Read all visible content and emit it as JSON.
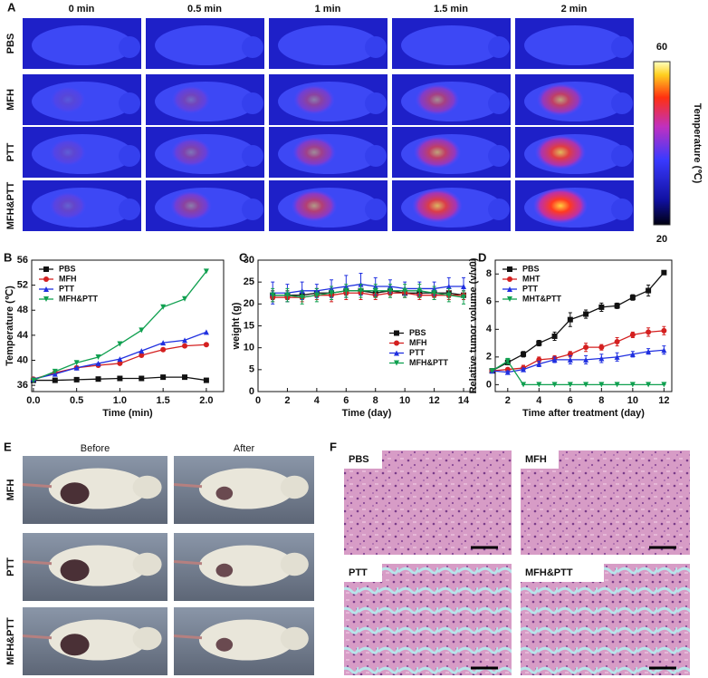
{
  "panel_labels": [
    "A",
    "B",
    "C",
    "D",
    "E",
    "F"
  ],
  "panel_a": {
    "columns": [
      "0 min",
      "0.5 min",
      "1 min",
      "1.5 min",
      "2 min"
    ],
    "rows": [
      "PBS",
      "MFH",
      "PTT",
      "MFH&PTT"
    ],
    "colorbar": {
      "max": 60,
      "min": 20,
      "label": "Temperature (℃)"
    }
  },
  "chart_data": [
    {
      "type": "line",
      "xlabel": "Time (min)",
      "ylabel": "Temperature (℃)",
      "legend": "upper left",
      "x": [
        0,
        0.25,
        0.5,
        0.75,
        1.0,
        1.25,
        1.5,
        1.75,
        2.0
      ],
      "xlim": [
        -0.02,
        2.2
      ],
      "xticks": [
        {
          "value": 0,
          "label": "0.0"
        },
        0.5,
        {
          "value": 1,
          "label": "1.0"
        },
        1.5,
        {
          "value": 2,
          "label": "2.0"
        }
      ],
      "ylim": [
        35,
        56
      ],
      "yticks": [
        36,
        40,
        44,
        48,
        52,
        56
      ],
      "series": [
        {
          "name": "PBS",
          "color": "#111111",
          "marker": "square",
          "values": [
            36.8,
            36.8,
            36.9,
            37,
            37.1,
            37.1,
            37.3,
            37.3,
            36.8
          ]
        },
        {
          "name": "MFH",
          "color": "#d42020",
          "marker": "circle",
          "values": [
            37,
            38,
            38.8,
            39.2,
            39.5,
            40.8,
            41.7,
            42.3,
            42.5
          ]
        },
        {
          "name": "PTT",
          "color": "#2030e0",
          "marker": "triangle",
          "values": [
            37,
            37.8,
            38.8,
            39.5,
            40.2,
            41.5,
            42.8,
            43.2,
            44.5
          ]
        },
        {
          "name": "MFH&PTT",
          "color": "#10a050",
          "marker": "triangle-down",
          "values": [
            36.8,
            38.2,
            39.6,
            40.5,
            42.6,
            44.8,
            48.5,
            49.8,
            54.2
          ]
        }
      ]
    },
    {
      "type": "line",
      "xlabel": "Time (day)",
      "ylabel": "weight (g)",
      "legend": "center right",
      "x": [
        1,
        2,
        3,
        4,
        5,
        6,
        7,
        8,
        9,
        10,
        11,
        12,
        13,
        14
      ],
      "xlim": [
        0,
        14.8
      ],
      "xticks": [
        0,
        2,
        4,
        6,
        8,
        10,
        12,
        14
      ],
      "ylim": [
        0,
        30
      ],
      "yticks": [
        0,
        5,
        10,
        15,
        20,
        25,
        30
      ],
      "series": [
        {
          "name": "PBS",
          "color": "#111111",
          "marker": "square",
          "values": [
            22,
            22,
            22,
            22.5,
            22.5,
            23,
            23,
            22.5,
            23,
            22.5,
            22.5,
            22.5,
            22.5,
            22
          ],
          "errors": [
            1,
            1,
            1,
            1,
            1,
            1,
            1,
            1,
            1,
            1,
            1,
            1,
            1,
            1
          ]
        },
        {
          "name": "MFH",
          "color": "#d42020",
          "marker": "circle",
          "values": [
            21.5,
            21.5,
            21.5,
            22,
            22,
            22.5,
            22.5,
            22,
            22.5,
            22.5,
            22,
            22,
            22,
            22
          ],
          "errors": [
            1,
            1,
            1,
            1,
            1.5,
            1.5,
            1.5,
            1,
            1,
            1,
            1,
            1,
            1,
            1
          ]
        },
        {
          "name": "PTT",
          "color": "#2030e0",
          "marker": "triangle",
          "values": [
            22.5,
            22.5,
            23,
            23,
            23.5,
            24,
            24.5,
            24,
            24,
            23.5,
            23.5,
            23.5,
            24,
            24
          ],
          "errors": [
            2.5,
            2,
            2,
            1.5,
            2,
            2.5,
            2.5,
            2,
            1.5,
            1.5,
            1.5,
            1.5,
            2,
            2
          ]
        },
        {
          "name": "MFH&PTT",
          "color": "#10a050",
          "marker": "triangle-down",
          "values": [
            22,
            22,
            21.5,
            22,
            22.5,
            23,
            23,
            23,
            23,
            23,
            23,
            22.5,
            22,
            21.5
          ],
          "errors": [
            1.5,
            1.5,
            1.5,
            1.5,
            1.5,
            1.5,
            1.5,
            1.5,
            1.5,
            1.5,
            1.5,
            1.5,
            1.5,
            1.5
          ]
        }
      ]
    },
    {
      "type": "line",
      "xlabel": "Time after treatment (day)",
      "ylabel": "Relative tumor volume (v/v0)",
      "legend": "upper left",
      "x": [
        1,
        2,
        3,
        4,
        5,
        6,
        7,
        8,
        9,
        10,
        11,
        12
      ],
      "xlim": [
        1.2,
        12.5
      ],
      "xticks": [
        2,
        4,
        6,
        8,
        10,
        12
      ],
      "ylim": [
        -0.5,
        9
      ],
      "yticks": [
        0,
        2,
        4,
        6,
        8
      ],
      "series": [
        {
          "name": "PBS",
          "color": "#111111",
          "marker": "square",
          "values": [
            1,
            1.6,
            2.2,
            3.0,
            3.5,
            4.7,
            5.1,
            5.6,
            5.7,
            6.3,
            6.8,
            8.1
          ],
          "errors": [
            0,
            0.1,
            0.2,
            0.2,
            0.3,
            0.5,
            0.3,
            0.3,
            0.2,
            0.2,
            0.4,
            0.1
          ]
        },
        {
          "name": "MHT",
          "color": "#d42020",
          "marker": "circle",
          "values": [
            1,
            1.1,
            1.2,
            1.8,
            1.9,
            2.2,
            2.7,
            2.7,
            3.1,
            3.6,
            3.8,
            3.9
          ],
          "errors": [
            0,
            0.1,
            0.2,
            0.2,
            0.2,
            0.2,
            0.3,
            0.2,
            0.3,
            0.2,
            0.3,
            0.3
          ]
        },
        {
          "name": "PTT",
          "color": "#2030e0",
          "marker": "triangle",
          "values": [
            1,
            0.9,
            1.1,
            1.5,
            1.8,
            1.8,
            1.8,
            1.9,
            2.0,
            2.2,
            2.4,
            2.5
          ],
          "errors": [
            0,
            0.1,
            0.1,
            0.2,
            0.2,
            0.3,
            0.3,
            0.3,
            0.3,
            0.2,
            0.2,
            0.3
          ]
        },
        {
          "name": "MHT&PTT",
          "color": "#10a050",
          "marker": "triangle-down",
          "values": [
            1,
            1.7,
            0,
            0,
            0,
            0,
            0,
            0,
            0,
            0,
            0,
            0
          ],
          "errors": [
            0,
            0.2,
            0,
            0,
            0,
            0,
            0,
            0,
            0,
            0,
            0,
            0
          ]
        }
      ]
    }
  ],
  "panel_e": {
    "columns": [
      "Before",
      "After"
    ],
    "rows": [
      "MFH",
      "PTT",
      "MFH&PTT"
    ]
  },
  "panel_f": {
    "labels": [
      "PBS",
      "MFH",
      "PTT",
      "MFH&PTT"
    ]
  }
}
